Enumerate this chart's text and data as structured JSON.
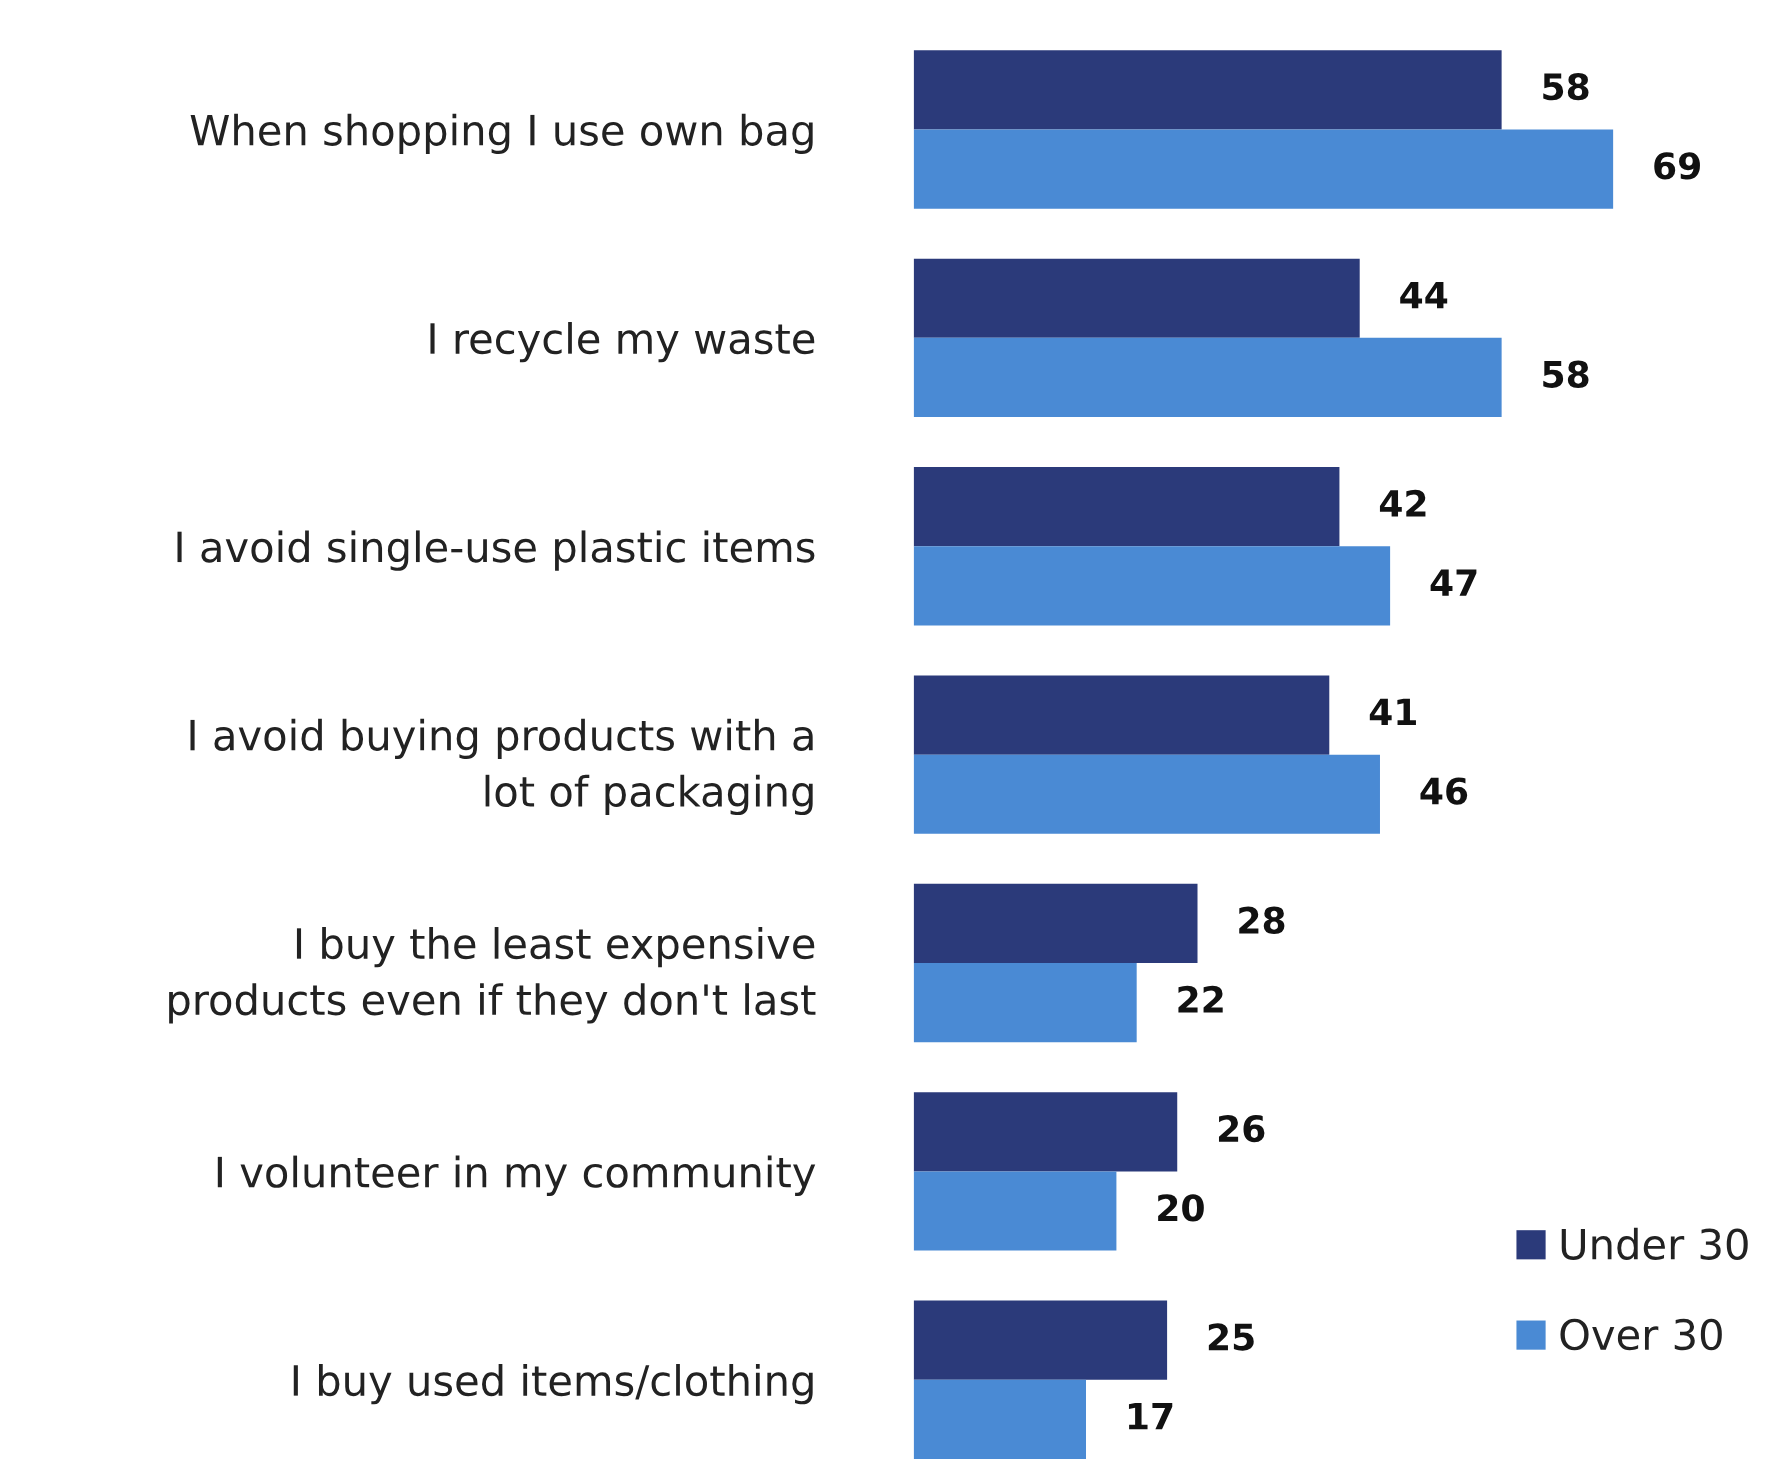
{
  "chart_data": {
    "type": "bar",
    "orientation": "horizontal",
    "categories": [
      "When shopping I use own bag",
      "I recycle my waste",
      "I avoid single-use plastic items",
      "I avoid buying products with a\nlot of packaging",
      "I buy the least expensive\nproducts even if they don't last",
      "I volunteer in my community",
      "I buy used items/clothing"
    ],
    "series": [
      {
        "name": "Under 30",
        "color": "#2b3a7a",
        "values": [
          58,
          44,
          42,
          41,
          28,
          26,
          25
        ]
      },
      {
        "name": "Over 30",
        "color": "#4a8ad4",
        "values": [
          69,
          58,
          47,
          46,
          22,
          20,
          17
        ]
      }
    ],
    "data_labels": true,
    "legend": "bottom right",
    "tick_labels": "y",
    "grid": false
  }
}
